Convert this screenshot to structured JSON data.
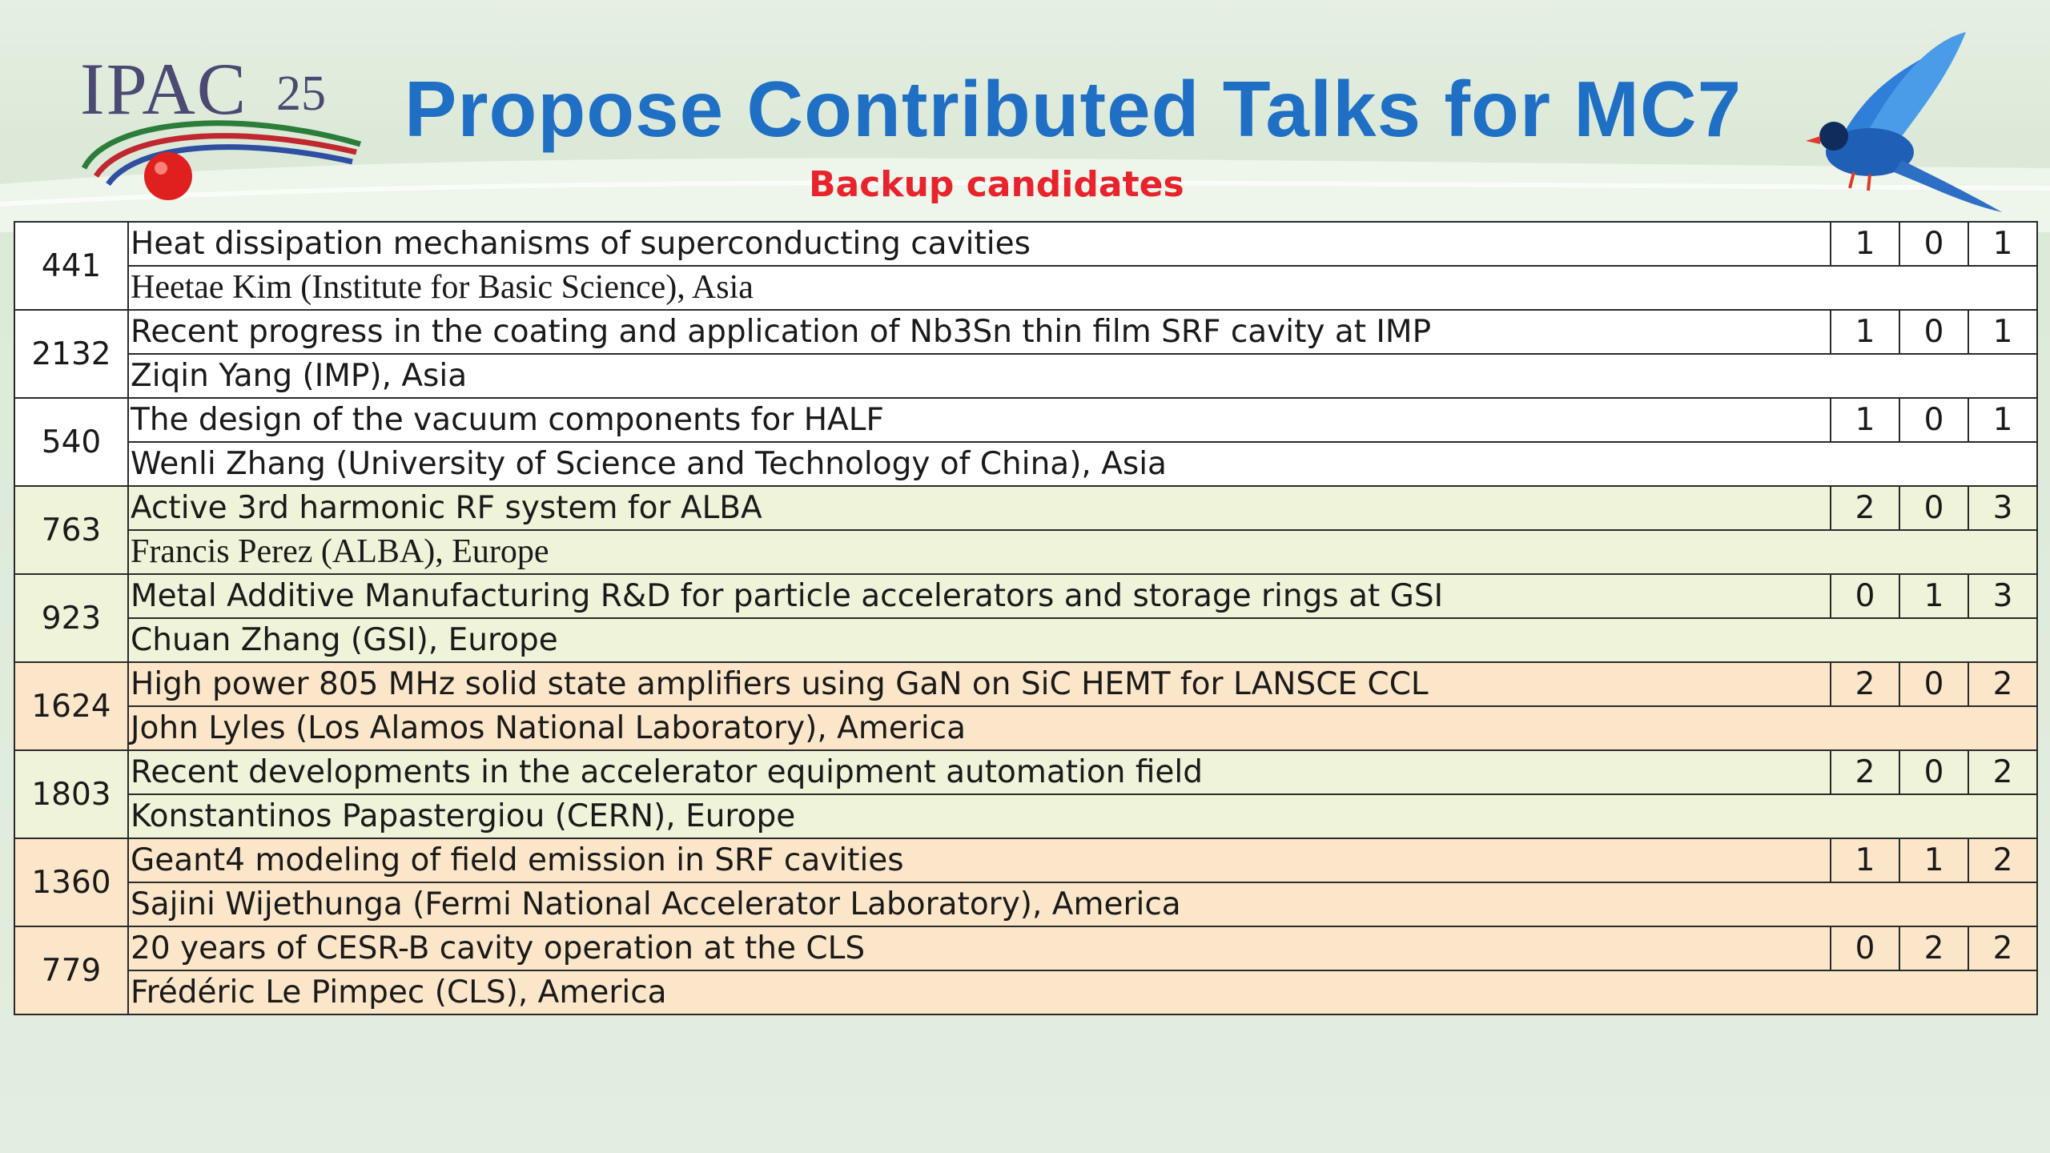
{
  "header": {
    "logo_text": "IPAC",
    "logo_year": "25",
    "title": "Propose Contributed Talks for MC7",
    "subtitle": "Backup candidates"
  },
  "colors": {
    "title": "#1f6fc4",
    "subtitle": "#e8232b",
    "row_white": "#ffffff",
    "row_green": "#eef3d9",
    "row_orange": "#fbe6c9"
  },
  "talks": [
    {
      "id": "441",
      "title": "Heat dissipation mechanisms of superconducting cavities",
      "speaker": "Heetae Kim (Institute for Basic Science), Asia",
      "scores": [
        "1",
        "0",
        "1"
      ],
      "shade": "white"
    },
    {
      "id": "2132",
      "title": "Recent progress in the coating and application of Nb3Sn thin film SRF cavity at IMP",
      "speaker": "Ziqin Yang (IMP), Asia",
      "scores": [
        "1",
        "0",
        "1"
      ],
      "shade": "white"
    },
    {
      "id": "540",
      "title": "The design of the vacuum components for HALF",
      "speaker": "Wenli Zhang (University of Science and Technology of China), Asia",
      "scores": [
        "1",
        "0",
        "1"
      ],
      "shade": "white"
    },
    {
      "id": "763",
      "title": "Active 3rd harmonic RF system for ALBA",
      "speaker": "Francis Perez (ALBA), Europe",
      "scores": [
        "2",
        "0",
        "3"
      ],
      "shade": "green"
    },
    {
      "id": "923",
      "title": "Metal Additive Manufacturing R&D for particle accelerators and storage rings at GSI",
      "speaker": "Chuan Zhang (GSI), Europe",
      "scores": [
        "0",
        "1",
        "3"
      ],
      "shade": "green"
    },
    {
      "id": "1624",
      "title": "High power 805 MHz solid state amplifiers using GaN on SiC HEMT for LANSCE CCL",
      "speaker": "John Lyles (Los Alamos National Laboratory), America",
      "scores": [
        "2",
        "0",
        "2"
      ],
      "shade": "orange"
    },
    {
      "id": "1803",
      "title": "Recent developments in the accelerator equipment automation field",
      "speaker": "Konstantinos Papastergiou (CERN), Europe",
      "scores": [
        "2",
        "0",
        "2"
      ],
      "shade": "green"
    },
    {
      "id": "1360",
      "title": "Geant4 modeling of field emission in SRF cavities",
      "speaker": "Sajini Wijethunga (Fermi National Accelerator Laboratory), America",
      "scores": [
        "1",
        "1",
        "2"
      ],
      "shade": "orange"
    },
    {
      "id": "779",
      "title": "20 years of CESR-B cavity operation at the CLS",
      "speaker": "Frédéric Le Pimpec (CLS), America",
      "scores": [
        "0",
        "2",
        "2"
      ],
      "shade": "orange"
    }
  ]
}
